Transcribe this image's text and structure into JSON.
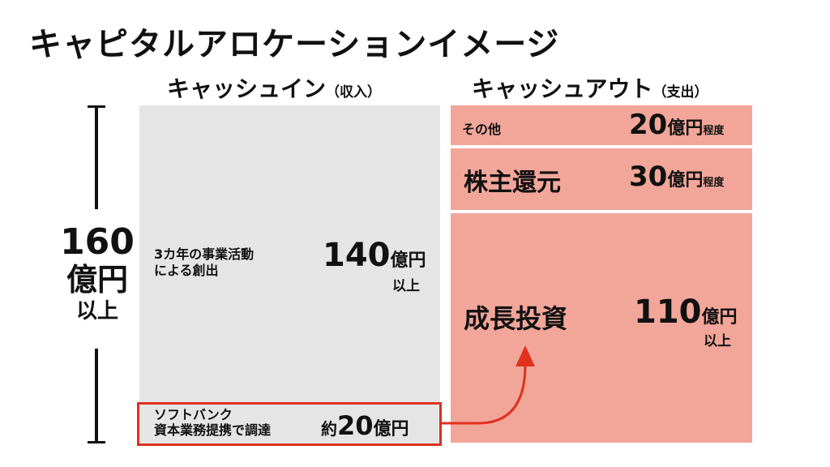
{
  "title": "キャピタルアロケーションイメージ",
  "cash_in": {
    "header": "キャッシュイン",
    "header_note": "（収入）",
    "main": {
      "label_line1": "3カ年の事業活動",
      "label_line2": "による創出",
      "amount": "140",
      "unit": "億円",
      "suffix": "以上"
    },
    "softbank": {
      "label_line1": "ソフトバンク",
      "label_line2": "資本業務提携で調達",
      "prefix": "約",
      "amount": "20",
      "unit": "億円"
    }
  },
  "cash_out": {
    "header": "キャッシュアウト",
    "header_note": "（支出）",
    "items": [
      {
        "label": "その他",
        "amount": "20",
        "unit": "億円",
        "suffix": "程度"
      },
      {
        "label": "株主還元",
        "amount": "30",
        "unit": "億円",
        "suffix": "程度"
      },
      {
        "label": "成長投資",
        "amount": "110",
        "unit": "億円",
        "suffix": "以上"
      }
    ]
  },
  "total": {
    "amount": "160",
    "unit": "億円",
    "suffix": "以上"
  },
  "colors": {
    "cash_in": "#e5e5e5",
    "cash_out": "#f2a69a",
    "highlight": "#e0301e"
  }
}
